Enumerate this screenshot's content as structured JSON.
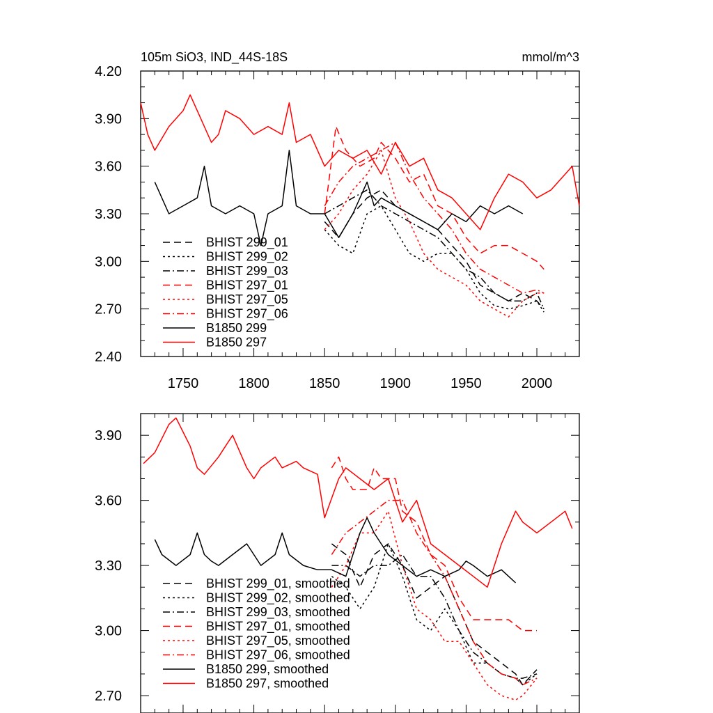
{
  "colors": {
    "black": "#000000",
    "red": "#ff0000"
  },
  "chart_data": [
    {
      "type": "line",
      "title": "105m SiO3, IND_44S-18S",
      "units": "mmol/m^3",
      "xlim": [
        1720,
        2030
      ],
      "ylim": [
        2.4,
        4.2
      ],
      "x_ticks": [
        1750,
        1800,
        1850,
        1900,
        1950,
        2000
      ],
      "x_tick_labels": [
        "1750",
        "1800",
        "1850",
        "1900",
        "1950",
        "2000"
      ],
      "y_ticks": [
        2.4,
        2.7,
        3.0,
        3.3,
        3.6,
        3.9,
        4.2
      ],
      "y_tick_labels": [
        "2.40",
        "2.70",
        "3.00",
        "3.30",
        "3.60",
        "3.90",
        "4.20"
      ],
      "legend": {
        "placement": "lower-left"
      },
      "series": [
        {
          "name": "BHIST 299_01",
          "color": "#000000",
          "dash": "dash",
          "x": [
            1850,
            1860,
            1870,
            1880,
            1890,
            1900,
            1910,
            1920,
            1930,
            1940,
            1950,
            1960,
            1970,
            1980,
            1990,
            2000,
            2005
          ],
          "y": [
            3.25,
            3.15,
            3.3,
            3.4,
            3.45,
            3.35,
            3.3,
            3.25,
            3.2,
            3.1,
            3.0,
            2.85,
            2.8,
            2.75,
            2.8,
            2.75,
            2.7
          ]
        },
        {
          "name": "BHIST 299_02",
          "color": "#000000",
          "dash": "dot",
          "x": [
            1850,
            1860,
            1870,
            1880,
            1890,
            1900,
            1910,
            1920,
            1930,
            1940,
            1950,
            1960,
            1970,
            1980,
            1990,
            2000,
            2005
          ],
          "y": [
            3.2,
            3.1,
            3.05,
            3.3,
            3.35,
            3.2,
            3.05,
            3.0,
            3.05,
            3.05,
            2.95,
            2.8,
            2.72,
            2.7,
            2.72,
            2.75,
            2.68
          ]
        },
        {
          "name": "BHIST 299_03",
          "color": "#000000",
          "dash": "dashdot",
          "x": [
            1850,
            1860,
            1870,
            1880,
            1890,
            1900,
            1910,
            1920,
            1930,
            1940,
            1950,
            1960,
            1970,
            1980,
            1990,
            2000,
            2005
          ],
          "y": [
            3.3,
            3.35,
            3.4,
            3.45,
            3.35,
            3.3,
            3.25,
            3.2,
            3.15,
            3.05,
            2.95,
            2.9,
            2.8,
            2.75,
            2.75,
            2.8,
            2.7
          ]
        },
        {
          "name": "BHIST 297_01",
          "color": "#ff0000",
          "dash": "dash",
          "x": [
            1850,
            1858,
            1865,
            1875,
            1885,
            1890,
            1900,
            1910,
            1920,
            1930,
            1940,
            1950,
            1960,
            1970,
            1980,
            1990,
            2000,
            2005
          ],
          "y": [
            3.3,
            3.85,
            3.7,
            3.6,
            3.65,
            3.75,
            3.65,
            3.5,
            3.55,
            3.35,
            3.3,
            3.15,
            3.05,
            3.1,
            3.1,
            3.05,
            3.0,
            2.95
          ]
        },
        {
          "name": "BHIST 297_05",
          "color": "#ff0000",
          "dash": "dot",
          "x": [
            1850,
            1860,
            1870,
            1880,
            1890,
            1900,
            1910,
            1920,
            1930,
            1940,
            1950,
            1960,
            1970,
            1980,
            1990,
            2000,
            2005
          ],
          "y": [
            3.2,
            3.3,
            3.45,
            3.55,
            3.7,
            3.4,
            3.25,
            3.05,
            2.95,
            2.9,
            2.85,
            2.75,
            2.7,
            2.65,
            2.75,
            2.8,
            2.8
          ]
        },
        {
          "name": "BHIST 297_06",
          "color": "#ff0000",
          "dash": "dashdot",
          "x": [
            1850,
            1860,
            1870,
            1880,
            1890,
            1900,
            1910,
            1920,
            1930,
            1940,
            1950,
            1960,
            1970,
            1980,
            1990,
            2000,
            2005
          ],
          "y": [
            3.35,
            3.5,
            3.6,
            3.65,
            3.7,
            3.75,
            3.55,
            3.4,
            3.3,
            3.2,
            3.05,
            2.95,
            2.9,
            2.85,
            2.8,
            2.82,
            2.8
          ]
        },
        {
          "name": "B1850 299",
          "color": "#000000",
          "dash": "solid",
          "x": [
            1730,
            1740,
            1750,
            1760,
            1765,
            1770,
            1780,
            1790,
            1800,
            1805,
            1810,
            1820,
            1825,
            1830,
            1840,
            1850,
            1860,
            1870,
            1880,
            1885,
            1890,
            1900,
            1910,
            1920,
            1930,
            1940,
            1950,
            1960,
            1970,
            1980,
            1990
          ],
          "y": [
            3.5,
            3.3,
            3.35,
            3.4,
            3.6,
            3.35,
            3.3,
            3.35,
            3.3,
            3.1,
            3.3,
            3.35,
            3.7,
            3.35,
            3.3,
            3.3,
            3.15,
            3.3,
            3.5,
            3.35,
            3.4,
            3.35,
            3.3,
            3.25,
            3.2,
            3.3,
            3.25,
            3.35,
            3.3,
            3.35,
            3.3
          ]
        },
        {
          "name": "B1850 297",
          "color": "#ff0000",
          "dash": "solid",
          "x": [
            1720,
            1725,
            1730,
            1740,
            1750,
            1755,
            1760,
            1770,
            1775,
            1780,
            1790,
            1800,
            1810,
            1820,
            1825,
            1830,
            1840,
            1850,
            1860,
            1870,
            1880,
            1890,
            1900,
            1910,
            1920,
            1930,
            1940,
            1950,
            1960,
            1970,
            1980,
            1990,
            2000,
            2010,
            2020,
            2025,
            2030
          ],
          "y": [
            4.0,
            3.8,
            3.7,
            3.85,
            3.95,
            4.05,
            3.95,
            3.75,
            3.8,
            3.95,
            3.9,
            3.8,
            3.85,
            3.8,
            4.0,
            3.75,
            3.8,
            3.6,
            3.7,
            3.65,
            3.7,
            3.55,
            3.75,
            3.6,
            3.65,
            3.45,
            3.4,
            3.3,
            3.2,
            3.4,
            3.55,
            3.5,
            3.4,
            3.45,
            3.55,
            3.6,
            3.35
          ]
        }
      ]
    },
    {
      "type": "line",
      "xlim": [
        1720,
        2030
      ],
      "ylim": [
        2.62,
        4.0
      ],
      "x_ticks": [
        1750,
        1800,
        1850,
        1900,
        1950,
        2000
      ],
      "y_ticks": [
        2.7,
        3.0,
        3.3,
        3.6,
        3.9
      ],
      "y_tick_labels": [
        "2.70",
        "3.00",
        "3.30",
        "3.60",
        "3.90"
      ],
      "legend": {
        "placement": "lower-left"
      },
      "series": [
        {
          "name": "BHIST 299_01, smoothed",
          "color": "#000000",
          "dash": "dash",
          "x": [
            1855,
            1865,
            1875,
            1885,
            1895,
            1905,
            1915,
            1925,
            1935,
            1945,
            1955,
            1965,
            1975,
            1985,
            1990,
            2000
          ],
          "y": [
            3.4,
            3.35,
            3.2,
            3.35,
            3.4,
            3.3,
            3.15,
            3.2,
            3.25,
            3.1,
            2.95,
            2.9,
            2.85,
            2.8,
            2.75,
            2.82
          ]
        },
        {
          "name": "BHIST 299_02, smoothed",
          "color": "#000000",
          "dash": "dot",
          "x": [
            1855,
            1865,
            1875,
            1885,
            1895,
            1905,
            1915,
            1925,
            1935,
            1945,
            1955,
            1965,
            1975,
            1985,
            1990,
            2000
          ],
          "y": [
            3.25,
            3.2,
            3.1,
            3.2,
            3.4,
            3.25,
            3.05,
            3.0,
            3.1,
            3.0,
            2.85,
            2.85,
            2.8,
            2.78,
            2.75,
            2.8
          ]
        },
        {
          "name": "BHIST 299_03, smoothed",
          "color": "#000000",
          "dash": "dashdot",
          "x": [
            1855,
            1865,
            1875,
            1885,
            1895,
            1905,
            1915,
            1925,
            1935,
            1945,
            1955,
            1965,
            1975,
            1985,
            1990,
            2000
          ],
          "y": [
            3.3,
            3.3,
            3.25,
            3.3,
            3.3,
            3.35,
            3.25,
            3.25,
            3.15,
            3.0,
            2.9,
            2.85,
            2.8,
            2.78,
            2.78,
            2.8
          ]
        },
        {
          "name": "BHIST 297_01, smoothed",
          "color": "#ff0000",
          "dash": "dash",
          "x": [
            1855,
            1860,
            1865,
            1870,
            1880,
            1885,
            1890,
            1900,
            1905,
            1915,
            1925,
            1935,
            1945,
            1955,
            1960,
            1970,
            1980,
            1990,
            2000
          ],
          "y": [
            3.75,
            3.8,
            3.7,
            3.65,
            3.65,
            3.75,
            3.7,
            3.7,
            3.55,
            3.5,
            3.35,
            3.3,
            3.15,
            3.05,
            3.05,
            3.05,
            3.05,
            3.0,
            3.0
          ]
        },
        {
          "name": "BHIST 297_05, smoothed",
          "color": "#ff0000",
          "dash": "dot",
          "x": [
            1855,
            1865,
            1875,
            1885,
            1895,
            1905,
            1915,
            1925,
            1935,
            1945,
            1955,
            1965,
            1975,
            1985,
            1990,
            2000
          ],
          "y": [
            3.2,
            3.3,
            3.45,
            3.45,
            3.55,
            3.3,
            3.1,
            3.05,
            2.95,
            2.95,
            2.85,
            2.75,
            2.7,
            2.68,
            2.7,
            2.78
          ]
        },
        {
          "name": "BHIST 297_06, smoothed",
          "color": "#ff0000",
          "dash": "dashdot",
          "x": [
            1855,
            1865,
            1875,
            1885,
            1895,
            1905,
            1915,
            1925,
            1935,
            1945,
            1955,
            1965,
            1975,
            1985,
            1990,
            2000
          ],
          "y": [
            3.35,
            3.45,
            3.5,
            3.55,
            3.6,
            3.6,
            3.45,
            3.35,
            3.25,
            3.1,
            2.95,
            2.85,
            2.8,
            2.78,
            2.75,
            2.78
          ]
        },
        {
          "name": "B1850 299, smoothed",
          "color": "#000000",
          "dash": "solid",
          "x": [
            1730,
            1735,
            1745,
            1755,
            1760,
            1765,
            1770,
            1775,
            1785,
            1795,
            1800,
            1805,
            1815,
            1820,
            1825,
            1835,
            1845,
            1855,
            1865,
            1875,
            1880,
            1885,
            1895,
            1905,
            1915,
            1925,
            1935,
            1945,
            1950,
            1955,
            1965,
            1975,
            1980,
            1985
          ],
          "y": [
            3.42,
            3.35,
            3.3,
            3.35,
            3.45,
            3.35,
            3.32,
            3.3,
            3.35,
            3.4,
            3.35,
            3.3,
            3.35,
            3.45,
            3.35,
            3.3,
            3.28,
            3.28,
            3.25,
            3.45,
            3.52,
            3.45,
            3.35,
            3.3,
            3.25,
            3.28,
            3.25,
            3.28,
            3.32,
            3.3,
            3.25,
            3.28,
            3.25,
            3.22
          ]
        },
        {
          "name": "B1850 297, smoothed",
          "color": "#ff0000",
          "dash": "solid",
          "x": [
            1722,
            1730,
            1740,
            1745,
            1755,
            1760,
            1765,
            1775,
            1780,
            1785,
            1795,
            1800,
            1805,
            1815,
            1820,
            1830,
            1835,
            1845,
            1850,
            1860,
            1865,
            1875,
            1885,
            1895,
            1905,
            1915,
            1925,
            1935,
            1945,
            1955,
            1965,
            1975,
            1985,
            1990,
            2000,
            2010,
            2020,
            2025
          ],
          "y": [
            3.77,
            3.82,
            3.95,
            3.98,
            3.85,
            3.75,
            3.72,
            3.8,
            3.85,
            3.9,
            3.75,
            3.7,
            3.75,
            3.8,
            3.75,
            3.78,
            3.75,
            3.72,
            3.52,
            3.7,
            3.75,
            3.7,
            3.65,
            3.7,
            3.5,
            3.6,
            3.4,
            3.35,
            3.3,
            3.25,
            3.2,
            3.4,
            3.55,
            3.5,
            3.45,
            3.5,
            3.55,
            3.47
          ]
        }
      ]
    }
  ]
}
